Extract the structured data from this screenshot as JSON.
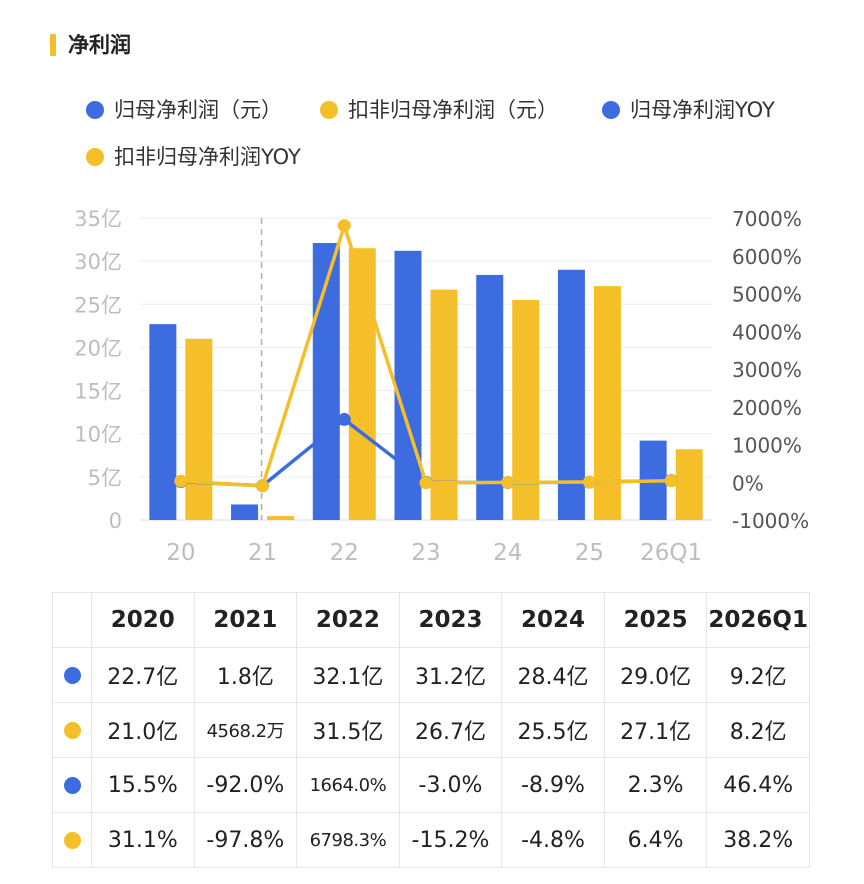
{
  "header": {
    "title": "净利润"
  },
  "colors": {
    "blue": "#3d6be0",
    "yellow": "#f5bf2a",
    "accent": "#f5bf2a",
    "axis": "#bdbdbd",
    "grid": "#eeeeee",
    "divider": "#b0b0b0"
  },
  "legend": [
    {
      "label": "归母净利润（元）",
      "color": "#3d6be0",
      "icon": "dot-icon"
    },
    {
      "label": "扣非归母净利润（元）",
      "color": "#f5bf2a",
      "icon": "dot-icon"
    },
    {
      "label": "归母净利润YOY",
      "color": "#3d6be0",
      "icon": "dot-icon"
    },
    {
      "label": "扣非归母净利润YOY",
      "color": "#f5bf2a",
      "icon": "dot-icon"
    }
  ],
  "chart_data": {
    "type": "bar",
    "categories": [
      "20",
      "21",
      "22",
      "23",
      "24",
      "25",
      "26Q1"
    ],
    "y_left": {
      "ticks": [
        "0",
        "5亿",
        "10亿",
        "15亿",
        "20亿",
        "25亿",
        "30亿",
        "35亿"
      ],
      "range": [
        0,
        35
      ],
      "unit": "亿"
    },
    "y_right": {
      "ticks": [
        "-1000%",
        "0%",
        "1000%",
        "2000%",
        "3000%",
        "4000%",
        "5000%",
        "6000%",
        "7000%"
      ],
      "range": [
        -1000,
        7000
      ],
      "unit": "%"
    },
    "grid": true,
    "legend_position": "top-left",
    "series": [
      {
        "name": "归母净利润（元）",
        "kind": "bar",
        "axis": "left",
        "color": "#3d6be0",
        "values": [
          22.7,
          1.8,
          32.1,
          31.2,
          28.4,
          29.0,
          9.2
        ]
      },
      {
        "name": "扣非归母净利润（元）",
        "kind": "bar",
        "axis": "left",
        "color": "#f5bf2a",
        "values": [
          21.0,
          0.45682,
          31.5,
          26.7,
          25.5,
          27.1,
          8.2
        ]
      },
      {
        "name": "归母净利润YOY",
        "kind": "line",
        "axis": "right",
        "color": "#3d6be0",
        "values": [
          15.5,
          -92.0,
          1664.0,
          -3.0,
          -8.9,
          2.3,
          46.4
        ]
      },
      {
        "name": "扣非归母净利润YOY",
        "kind": "line",
        "axis": "right",
        "color": "#f5bf2a",
        "values": [
          31.1,
          -97.8,
          6798.3,
          -15.2,
          -4.8,
          6.4,
          38.2
        ]
      }
    ]
  },
  "table": {
    "headers": [
      "2020",
      "2021",
      "2022",
      "2023",
      "2024",
      "2025",
      "2026Q1"
    ],
    "rows": [
      {
        "color": "#3d6be0",
        "cells": [
          "22.7亿",
          "1.8亿",
          "32.1亿",
          "31.2亿",
          "28.4亿",
          "29.0亿",
          "9.2亿"
        ]
      },
      {
        "color": "#f5bf2a",
        "cells": [
          "21.0亿",
          "4568.2万",
          "31.5亿",
          "26.7亿",
          "25.5亿",
          "27.1亿",
          "8.2亿"
        ]
      },
      {
        "color": "#3d6be0",
        "cells": [
          "15.5%",
          "-92.0%",
          "1664.0%",
          "-3.0%",
          "-8.9%",
          "2.3%",
          "46.4%"
        ]
      },
      {
        "color": "#f5bf2a",
        "cells": [
          "31.1%",
          "-97.8%",
          "6798.3%",
          "-15.2%",
          "-4.8%",
          "6.4%",
          "38.2%"
        ]
      }
    ]
  }
}
